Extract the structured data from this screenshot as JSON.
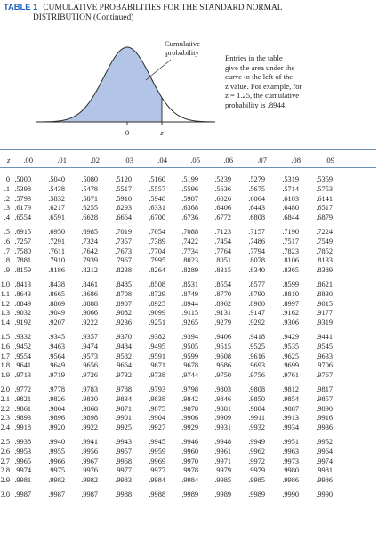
{
  "title": {
    "tag": "TABLE 1",
    "line1": "CUMULATIVE PROBABILITIES FOR THE STANDARD NORMAL",
    "line2": "DISTRIBUTION (Continued)"
  },
  "figure": {
    "shaded_label_line1": "Cumulative",
    "shaded_label_line2": "probability",
    "axis_zero": "0",
    "axis_z": "z",
    "fill_color": "#b3c5e6",
    "curve_color": "#2a2a2a"
  },
  "caption": {
    "line1": "Entries in the table",
    "line2": "give the area under the",
    "line3": "curve to the left of the",
    "line4": "z value. For example, for",
    "line5": "z = 1.25, the cumulative",
    "line6": "probability is .8944."
  },
  "table": {
    "header": [
      "z",
      ".00",
      ".01",
      ".02",
      ".03",
      ".04",
      ".05",
      ".06",
      ".07",
      ".08",
      ".09"
    ],
    "rule_color": "#6f8fb2",
    "blocks": [
      [
        [
          "0",
          ".5000",
          ".5040",
          ".5080",
          ".5120",
          ".5160",
          ".5199",
          ".5239",
          ".5279",
          ".5319",
          ".5359"
        ],
        [
          ".1",
          ".5398",
          ".5438",
          ".5478",
          ".5517",
          ".5557",
          ".5596",
          ".5636",
          ".5675",
          ".5714",
          ".5753"
        ],
        [
          ".2",
          ".5793",
          ".5832",
          ".5871",
          ".5910",
          ".5948",
          ".5987",
          ".6026",
          ".6064",
          ".6103",
          ".6141"
        ],
        [
          ".3",
          ".6179",
          ".6217",
          ".6255",
          ".6293",
          ".6331",
          ".6368",
          ".6406",
          ".6443",
          ".6480",
          ".6517"
        ],
        [
          ".4",
          ".6554",
          ".6591",
          ".6628",
          ".6664",
          ".6700",
          ".6736",
          ".6772",
          ".6808",
          ".6844",
          ".6879"
        ]
      ],
      [
        [
          ".5",
          ".6915",
          ".6950",
          ".6985",
          ".7019",
          ".7054",
          ".7088",
          ".7123",
          ".7157",
          ".7190",
          ".7224"
        ],
        [
          ".6",
          ".7257",
          ".7291",
          ".7324",
          ".7357",
          ".7389",
          ".7422",
          ".7454",
          ".7486",
          ".7517",
          ".7549"
        ],
        [
          ".7",
          ".7580",
          ".7611",
          ".7642",
          ".7673",
          ".7704",
          ".7734",
          ".7764",
          ".7794",
          ".7823",
          ".7852"
        ],
        [
          ".8",
          ".7881",
          ".7910",
          ".7939",
          ".7967",
          ".7995",
          ".8023",
          ".8051",
          ".8078",
          ".8106",
          ".8133"
        ],
        [
          ".9",
          ".8159",
          ".8186",
          ".8212",
          ".8238",
          ".8264",
          ".8289",
          ".8315",
          ".8340",
          ".8365",
          ".8389"
        ]
      ],
      [
        [
          "1.0",
          ".8413",
          ".8438",
          ".8461",
          ".8485",
          ".8508",
          ".8531",
          ".8554",
          ".8577",
          ".8599",
          ".8621"
        ],
        [
          "1.1",
          ".8643",
          ".8665",
          ".8686",
          ".8708",
          ".8729",
          ".8749",
          ".8770",
          ".8790",
          ".8810",
          ".8830"
        ],
        [
          "1.2",
          ".8849",
          ".8869",
          ".8888",
          ".8907",
          ".8925",
          ".8944",
          ".8962",
          ".8980",
          ".8997",
          ".9015"
        ],
        [
          "1.3",
          ".9032",
          ".9049",
          ".9066",
          ".9082",
          ".9099",
          ".9115",
          ".9131",
          ".9147",
          ".9162",
          ".9177"
        ],
        [
          "1.4",
          ".9192",
          ".9207",
          ".9222",
          ".9236",
          ".9251",
          ".9265",
          ".9279",
          ".9292",
          ".9306",
          ".9319"
        ]
      ],
      [
        [
          "1.5",
          ".9332",
          ".9345",
          ".9357",
          ".9370",
          ".9382",
          ".9394",
          ".9406",
          ".9418",
          ".9429",
          ".9441"
        ],
        [
          "1.6",
          ".9452",
          ".9463",
          ".9474",
          ".9484",
          ".9495",
          ".9505",
          ".9515",
          ".9525",
          ".9535",
          ".9545"
        ],
        [
          "1.7",
          ".9554",
          ".9564",
          ".9573",
          ".9582",
          ".9591",
          ".9599",
          ".9608",
          ".9616",
          ".9625",
          ".9633"
        ],
        [
          "1.8",
          ".9641",
          ".9649",
          ".9656",
          ".9664",
          ".9671",
          ".9678",
          ".9686",
          ".9693",
          ".9699",
          ".9706"
        ],
        [
          "1.9",
          ".9713",
          ".9719",
          ".9726",
          ".9732",
          ".9738",
          ".9744",
          ".9750",
          ".9756",
          ".9761",
          ".9767"
        ]
      ],
      [
        [
          "2.0",
          ".9772",
          ".9778",
          ".9783",
          ".9788",
          ".9793",
          ".9798",
          ".9803",
          ".9808",
          ".9812",
          ".9817"
        ],
        [
          "2.1",
          ".9821",
          ".9826",
          ".9830",
          ".9834",
          ".9838",
          ".9842",
          ".9846",
          ".9850",
          ".9854",
          ".9857"
        ],
        [
          "2.2",
          ".9861",
          ".9864",
          ".9868",
          ".9871",
          ".9875",
          ".9878",
          ".9881",
          ".9884",
          ".9887",
          ".9890"
        ],
        [
          "2.3",
          ".9893",
          ".9896",
          ".9898",
          ".9901",
          ".9904",
          ".9906",
          ".9909",
          ".9911",
          ".9913",
          ".9916"
        ],
        [
          "2.4",
          ".9918",
          ".9920",
          ".9922",
          ".9925",
          ".9927",
          ".9929",
          ".9931",
          ".9932",
          ".9934",
          ".9936"
        ]
      ],
      [
        [
          "2.5",
          ".9938",
          ".9940",
          ".9941",
          ".9943",
          ".9945",
          ".9946",
          ".9948",
          ".9949",
          ".9951",
          ".9952"
        ],
        [
          "2.6",
          ".9953",
          ".9955",
          ".9956",
          ".9957",
          ".9959",
          ".9960",
          ".9961",
          ".9962",
          ".9963",
          ".9964"
        ],
        [
          "2.7",
          ".9965",
          ".9966",
          ".9967",
          ".9968",
          ".9969",
          ".9970",
          ".9971",
          ".9972",
          ".9973",
          ".9974"
        ],
        [
          "2.8",
          ".9974",
          ".9975",
          ".9976",
          ".9977",
          ".9977",
          ".9978",
          ".9979",
          ".9979",
          ".9980",
          ".9981"
        ],
        [
          "2.9",
          ".9981",
          ".9982",
          ".9982",
          ".9983",
          ".9984",
          ".9984",
          ".9985",
          ".9985",
          ".9986",
          ".9986"
        ]
      ],
      [
        [
          "3.0",
          ".9987",
          ".9987",
          ".9987",
          ".9988",
          ".9988",
          ".9989",
          ".9989",
          ".9989",
          ".9990",
          ".9990"
        ]
      ]
    ]
  }
}
